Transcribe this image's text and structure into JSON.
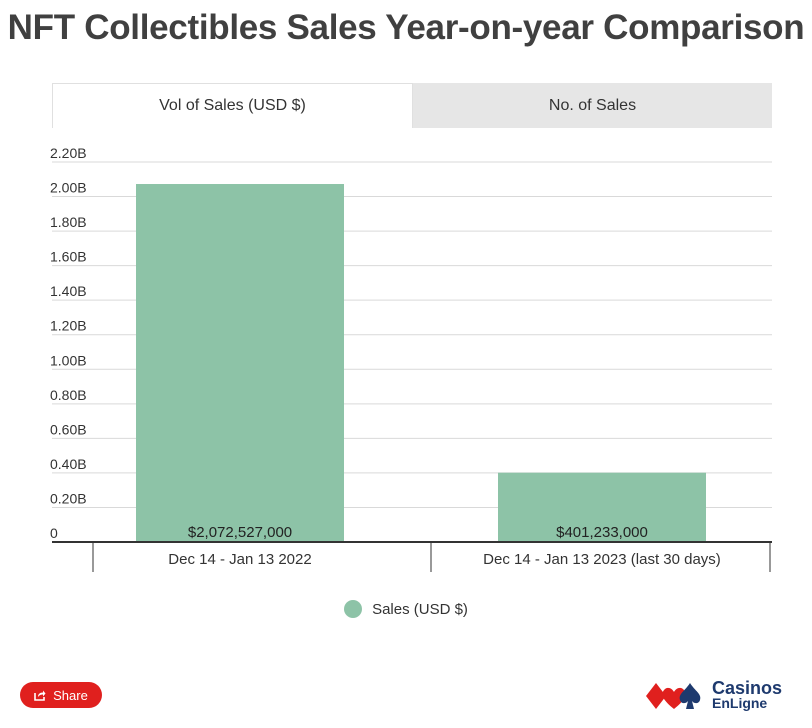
{
  "title": "NFT Collectibles Sales Year-on-year Comparison",
  "tabs": [
    {
      "label": "Vol of Sales (USD $)",
      "active": true
    },
    {
      "label": "No. of Sales",
      "active": false
    }
  ],
  "chart_data": {
    "type": "bar",
    "categories": [
      "Dec 14 - Jan 13 2022",
      "Dec 14 - Jan 13 2023 (last 30 days)"
    ],
    "series": [
      {
        "name": "Sales (USD $)",
        "values": [
          2072527000,
          401233000
        ],
        "color": "#8dc3a7"
      }
    ],
    "data_labels": [
      "$2,072,527,000",
      "$401,233,000"
    ],
    "y_ticks": [
      "0",
      "0.20B",
      "0.40B",
      "0.60B",
      "0.80B",
      "1.00B",
      "1.20B",
      "1.40B",
      "1.60B",
      "1.80B",
      "2.00B",
      "2.20B"
    ],
    "ylim": [
      0,
      2200000000
    ],
    "grid": true,
    "legend_position": "bottom"
  },
  "share": {
    "label": "Share"
  },
  "logo": {
    "line1": "Casinos",
    "line2": "EnLigne"
  },
  "colors": {
    "bar": "#8dc3a7",
    "share": "#e0201e",
    "logo": "#1e3a6e"
  }
}
